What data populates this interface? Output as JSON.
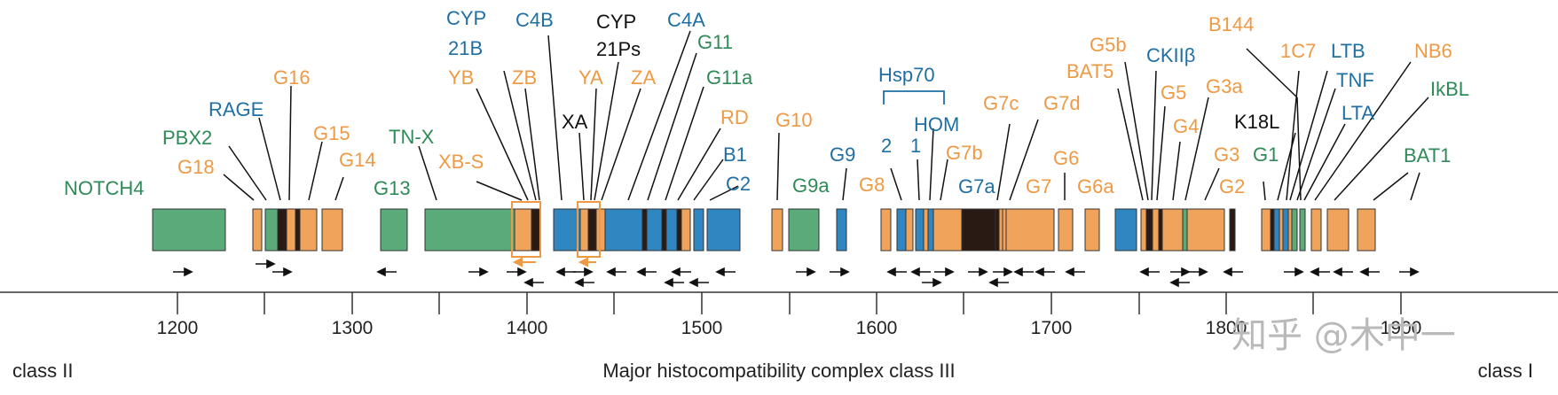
{
  "colors": {
    "green": "#5aaa7a",
    "orange": "#f0a35a",
    "blue": "#2f86c0",
    "dark": "#2a1a14",
    "green_text": "#2e8b57",
    "orange_text": "#ee9a45",
    "blue_text": "#1f6fa3",
    "black_text": "#111111",
    "axis": "#333333"
  },
  "axis": {
    "ticks": [
      "1200",
      "1300",
      "1400",
      "1500",
      "1600",
      "1700",
      "1800",
      "1900"
    ]
  },
  "regions": {
    "left": "class II",
    "center": "Major histocompatibility complex class III",
    "right": "class I"
  },
  "watermark": "知乎 @木中一",
  "bracket_label": "Hsp70",
  "labels": [
    {
      "id": "notch4",
      "text": "NOTCH4",
      "color": "green"
    },
    {
      "id": "g18",
      "text": "G18",
      "color": "orange"
    },
    {
      "id": "pbx2",
      "text": "PBX2",
      "color": "green"
    },
    {
      "id": "rage",
      "text": "RAGE",
      "color": "blue"
    },
    {
      "id": "g16",
      "text": "G16",
      "color": "orange"
    },
    {
      "id": "g15",
      "text": "G15",
      "color": "orange"
    },
    {
      "id": "g14",
      "text": "G14",
      "color": "orange"
    },
    {
      "id": "g13",
      "text": "G13",
      "color": "green"
    },
    {
      "id": "tnx",
      "text": "TN-X",
      "color": "green"
    },
    {
      "id": "xbs",
      "text": "XB-S",
      "color": "orange"
    },
    {
      "id": "yb",
      "text": "YB",
      "color": "orange"
    },
    {
      "id": "cyp21b_a",
      "text": "CYP",
      "color": "blue"
    },
    {
      "id": "cyp21b_b",
      "text": "21B",
      "color": "blue"
    },
    {
      "id": "zb",
      "text": "ZB",
      "color": "orange"
    },
    {
      "id": "c4b",
      "text": "C4B",
      "color": "blue"
    },
    {
      "id": "xa",
      "text": "XA",
      "color": "black"
    },
    {
      "id": "ya",
      "text": "YA",
      "color": "orange"
    },
    {
      "id": "cyp21ps_a",
      "text": "CYP",
      "color": "black"
    },
    {
      "id": "cyp21ps_b",
      "text": "21Ps",
      "color": "black"
    },
    {
      "id": "za",
      "text": "ZA",
      "color": "orange"
    },
    {
      "id": "c4a",
      "text": "C4A",
      "color": "blue"
    },
    {
      "id": "g11",
      "text": "G11",
      "color": "green"
    },
    {
      "id": "g11a",
      "text": "G11a",
      "color": "green"
    },
    {
      "id": "rd",
      "text": "RD",
      "color": "orange"
    },
    {
      "id": "b1",
      "text": "B1",
      "color": "blue"
    },
    {
      "id": "c2",
      "text": "C2",
      "color": "blue"
    },
    {
      "id": "g10",
      "text": "G10",
      "color": "orange"
    },
    {
      "id": "g9a",
      "text": "G9a",
      "color": "green"
    },
    {
      "id": "g9",
      "text": "G9",
      "color": "blue"
    },
    {
      "id": "g8",
      "text": "G8",
      "color": "orange"
    },
    {
      "id": "hsp2",
      "text": "2",
      "color": "blue"
    },
    {
      "id": "hsp1",
      "text": "1",
      "color": "blue"
    },
    {
      "id": "hom",
      "text": "HOM",
      "color": "blue"
    },
    {
      "id": "g7b",
      "text": "G7b",
      "color": "orange"
    },
    {
      "id": "g7a",
      "text": "G7a",
      "color": "blue"
    },
    {
      "id": "g7c",
      "text": "G7c",
      "color": "orange"
    },
    {
      "id": "g7",
      "text": "G7",
      "color": "orange"
    },
    {
      "id": "g7d",
      "text": "G7d",
      "color": "orange"
    },
    {
      "id": "g6",
      "text": "G6",
      "color": "orange"
    },
    {
      "id": "g6a",
      "text": "G6a",
      "color": "orange"
    },
    {
      "id": "bat5",
      "text": "BAT5",
      "color": "orange"
    },
    {
      "id": "g5b",
      "text": "G5b",
      "color": "orange"
    },
    {
      "id": "ckii",
      "text": "CKIIβ",
      "color": "blue"
    },
    {
      "id": "g5",
      "text": "G5",
      "color": "orange"
    },
    {
      "id": "g4",
      "text": "G4",
      "color": "orange"
    },
    {
      "id": "g3a",
      "text": "G3a",
      "color": "orange"
    },
    {
      "id": "g3",
      "text": "G3",
      "color": "orange"
    },
    {
      "id": "g2",
      "text": "G2",
      "color": "orange"
    },
    {
      "id": "b144",
      "text": "B144",
      "color": "orange"
    },
    {
      "id": "g1",
      "text": "G1",
      "color": "green"
    },
    {
      "id": "k18l",
      "text": "K18L",
      "color": "black"
    },
    {
      "id": "1c7",
      "text": "1C7",
      "color": "orange"
    },
    {
      "id": "ltb",
      "text": "LTB",
      "color": "blue"
    },
    {
      "id": "tnf",
      "text": "TNF",
      "color": "blue"
    },
    {
      "id": "lta",
      "text": "LTA",
      "color": "blue"
    },
    {
      "id": "nb6",
      "text": "NB6",
      "color": "orange"
    },
    {
      "id": "ikbl",
      "text": "IkBL",
      "color": "green"
    },
    {
      "id": "bat1",
      "text": "BAT1",
      "color": "green"
    }
  ],
  "genes": [
    {
      "c": "green"
    },
    {
      "c": "orange"
    },
    {
      "c": "green"
    },
    {
      "c": "dark"
    },
    {
      "c": "orange"
    },
    {
      "c": "dark"
    },
    {
      "c": "orange"
    },
    {
      "c": "orange"
    },
    {
      "c": "green"
    },
    {
      "c": "green"
    },
    {
      "c": "orange"
    },
    {
      "c": "dark"
    },
    {
      "c": "blue"
    },
    {
      "c": "orange"
    },
    {
      "c": "dark"
    },
    {
      "c": "orange"
    },
    {
      "c": "blue"
    },
    {
      "c": "dark"
    },
    {
      "c": "blue"
    },
    {
      "c": "dark"
    },
    {
      "c": "blue"
    },
    {
      "c": "dark"
    },
    {
      "c": "orange"
    },
    {
      "c": "blue"
    },
    {
      "c": "blue"
    },
    {
      "c": "orange"
    },
    {
      "c": "green"
    },
    {
      "c": "blue"
    },
    {
      "c": "orange"
    },
    {
      "c": "blue"
    },
    {
      "c": "orange"
    },
    {
      "c": "blue"
    },
    {
      "c": "orange"
    },
    {
      "c": "blue"
    },
    {
      "c": "orange"
    },
    {
      "c": "dark"
    },
    {
      "c": "dark"
    },
    {
      "c": "orange"
    },
    {
      "c": "orange"
    },
    {
      "c": "orange"
    },
    {
      "c": "orange"
    },
    {
      "c": "orange"
    },
    {
      "c": "blue"
    },
    {
      "c": "orange"
    },
    {
      "c": "dark"
    },
    {
      "c": "orange"
    },
    {
      "c": "dark"
    },
    {
      "c": "orange"
    },
    {
      "c": "green"
    },
    {
      "c": "orange"
    },
    {
      "c": "dark"
    },
    {
      "c": "orange"
    },
    {
      "c": "dark"
    },
    {
      "c": "blue"
    },
    {
      "c": "orange"
    },
    {
      "c": "blue"
    },
    {
      "c": "orange"
    },
    {
      "c": "green"
    },
    {
      "c": "green"
    }
  ]
}
